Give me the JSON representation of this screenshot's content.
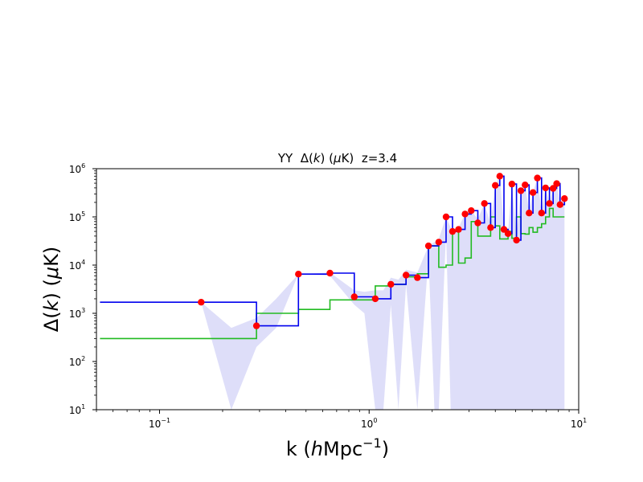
{
  "chart_data": {
    "type": "line",
    "title_prefix": "YY  ",
    "title_suffix": "  z=3.4",
    "xlabel_prefix": "k (",
    "xlabel_h": "h",
    "xlabel_unit": "Mpc",
    "xlabel_exp": "−1",
    "xlabel_suffix": ")",
    "ylabel_prefix": "Δ(",
    "ylabel_k": "k",
    "ylabel_mid": ") (",
    "ylabel_mu": "μ",
    "ylabel_unit": "K)",
    "title_delta": "Δ(",
    "title_k": "k",
    "title_mid": ") (",
    "title_mu": "μ",
    "title_unit": "K)",
    "x_scale": "log",
    "y_scale": "log",
    "xlim": [
      0.05,
      10
    ],
    "ylim": [
      10,
      1000000
    ],
    "x_ticks": [
      {
        "value": 0.1,
        "base": "10",
        "exp": "−1"
      },
      {
        "value": 1,
        "base": "10",
        "exp": "0"
      },
      {
        "value": 10,
        "base": "10",
        "exp": "1"
      }
    ],
    "y_ticks": [
      {
        "value": 10,
        "base": "10",
        "exp": "1"
      },
      {
        "value": 100,
        "base": "10",
        "exp": "2"
      },
      {
        "value": 1000,
        "base": "10",
        "exp": "3"
      },
      {
        "value": 10000,
        "base": "10",
        "exp": "4"
      },
      {
        "value": 100000,
        "base": "10",
        "exp": "5"
      },
      {
        "value": 1000000,
        "base": "10",
        "exp": "6"
      }
    ],
    "colors": {
      "measurement_step": "#0000ee",
      "noise_step": "#22bb22",
      "points": "#ff0000",
      "error_band": "#d8d8f8"
    },
    "series": [
      {
        "key": "measurement",
        "style": "step",
        "k": [
          0.052,
          0.158,
          0.29,
          0.46,
          0.65,
          0.85,
          1.07,
          1.27,
          1.5,
          1.7,
          1.92,
          2.15,
          2.33,
          2.5,
          2.67,
          2.87,
          3.07,
          3.3,
          3.55,
          3.8,
          4.0,
          4.2,
          4.4,
          4.6,
          4.8,
          5.05,
          5.3,
          5.55,
          5.8,
          6.05,
          6.35,
          6.65,
          6.95,
          7.25,
          7.55,
          7.85,
          8.15,
          8.55
        ],
        "values": [
          1700,
          1700,
          550,
          6500,
          6800,
          2200,
          2000,
          4000,
          6200,
          5500,
          25000,
          30000,
          100000,
          50000,
          55000,
          115000,
          135000,
          75000,
          190000,
          60000,
          450000,
          700000,
          55000,
          45000,
          480000,
          33000,
          350000,
          460000,
          120000,
          320000,
          640000,
          120000,
          400000,
          190000,
          390000,
          490000,
          180000,
          240000
        ]
      },
      {
        "key": "noise",
        "style": "step",
        "k": [
          0.052,
          0.158,
          0.29,
          0.46,
          0.65,
          0.85,
          1.07,
          1.27,
          1.5,
          1.7,
          1.92,
          2.15,
          2.33,
          2.5,
          2.67,
          2.87,
          3.07,
          3.3,
          3.55,
          3.8,
          4.0,
          4.2,
          4.4,
          4.6,
          4.8,
          5.05,
          5.3,
          5.55,
          5.8,
          6.05,
          6.35,
          6.65,
          6.95,
          7.25,
          7.55,
          7.85,
          8.15,
          8.55
        ],
        "values": [
          300,
          300,
          1000,
          1200,
          1900,
          1900,
          3700,
          4000,
          5700,
          6600,
          25000,
          9000,
          10000,
          50000,
          11000,
          14000,
          80000,
          40000,
          40000,
          100000,
          65000,
          35000,
          35000,
          50000,
          36000,
          100000,
          45000,
          44000,
          60000,
          48000,
          60000,
          72000,
          100000,
          150000,
          100000,
          100000,
          100000,
          100000
        ]
      }
    ],
    "points": {
      "k": [
        0.158,
        0.29,
        0.46,
        0.65,
        0.85,
        1.07,
        1.27,
        1.5,
        1.7,
        1.92,
        2.15,
        2.33,
        2.5,
        2.67,
        2.87,
        3.07,
        3.3,
        3.55,
        3.8,
        4.0,
        4.2,
        4.4,
        4.6,
        4.8,
        5.05,
        5.3,
        5.55,
        5.8,
        6.05,
        6.35,
        6.65,
        6.95,
        7.25,
        7.55,
        7.85,
        8.15,
        8.55
      ],
      "values": [
        1700,
        550,
        6500,
        6800,
        2200,
        2000,
        4000,
        6200,
        5500,
        25000,
        30000,
        100000,
        50000,
        55000,
        115000,
        135000,
        75000,
        190000,
        60000,
        450000,
        700000,
        55000,
        45000,
        480000,
        33000,
        350000,
        460000,
        120000,
        320000,
        640000,
        120000,
        400000,
        190000,
        390000,
        490000,
        180000,
        240000
      ]
    },
    "error_band": {
      "k": [
        0.158,
        0.22,
        0.29,
        0.36,
        0.46,
        0.65,
        0.85,
        0.95,
        1.07,
        1.17,
        1.27,
        1.38,
        1.5,
        1.7,
        1.92,
        2.05,
        2.15,
        2.33,
        2.45,
        2.5,
        2.67,
        2.87,
        3.07,
        3.3,
        3.55,
        3.8,
        4.0,
        4.2,
        4.4,
        4.6,
        4.8,
        5.05,
        5.3,
        5.55,
        5.8,
        6.05,
        6.35,
        6.65,
        6.95,
        7.25,
        7.55,
        7.85,
        8.15,
        8.55
      ],
      "upper": [
        1700,
        500,
        800,
        2000,
        6500,
        7000,
        3000,
        2800,
        3000,
        3000,
        5500,
        5000,
        8000,
        7000,
        25000,
        30000,
        35000,
        100000,
        60000,
        50000,
        60000,
        115000,
        135000,
        90000,
        190000,
        70000,
        450000,
        700000,
        60000,
        50000,
        480000,
        40000,
        350000,
        460000,
        130000,
        320000,
        640000,
        130000,
        400000,
        200000,
        390000,
        490000,
        200000,
        240000
      ],
      "lower": [
        1700,
        10,
        200,
        500,
        6500,
        6000,
        1500,
        1000,
        10,
        10,
        1500,
        10,
        4000,
        10,
        15000,
        10,
        10,
        50000,
        10,
        10,
        10,
        10,
        10,
        10,
        10,
        10,
        10,
        10,
        10,
        10,
        10,
        10,
        10,
        10,
        10,
        10,
        10,
        10,
        10,
        10,
        10,
        10,
        10,
        10
      ]
    }
  }
}
